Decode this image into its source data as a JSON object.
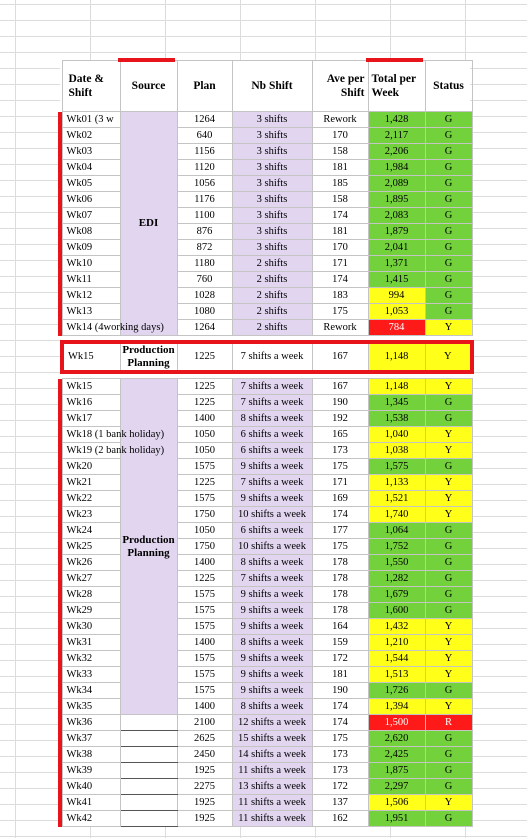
{
  "table": {
    "headers": {
      "date_shift": "Date & Shift",
      "source": "Source",
      "plan": "Plan",
      "nb_shift": "Nb Shift",
      "ave_per_shift": "Ave per Shift",
      "total_per_week": "Total per Week",
      "status": "Status"
    },
    "colors": {
      "G": "#73d13c",
      "Y": "#ffff1a",
      "R": "#ff1a1a"
    },
    "group_edi": {
      "source": "EDI",
      "rows": [
        {
          "date": "Wk01 (3 w",
          "plan": "1264",
          "nb": "3 shifts",
          "ave": "Rework",
          "total": "1,428",
          "tc": "g",
          "status": "G",
          "sc": "g"
        },
        {
          "date": "Wk02",
          "plan": "640",
          "nb": "3 shifts",
          "ave": "170",
          "total": "2,117",
          "tc": "g",
          "status": "G",
          "sc": "g"
        },
        {
          "date": "Wk03",
          "plan": "1156",
          "nb": "3 shifts",
          "ave": "158",
          "total": "2,206",
          "tc": "g",
          "status": "G",
          "sc": "g"
        },
        {
          "date": "Wk04",
          "plan": "1120",
          "nb": "3 shifts",
          "ave": "181",
          "total": "1,984",
          "tc": "g",
          "status": "G",
          "sc": "g"
        },
        {
          "date": "Wk05",
          "plan": "1056",
          "nb": "3 shifts",
          "ave": "185",
          "total": "2,089",
          "tc": "g",
          "status": "G",
          "sc": "g"
        },
        {
          "date": "Wk06",
          "plan": "1176",
          "nb": "3 shifts",
          "ave": "158",
          "total": "1,895",
          "tc": "g",
          "status": "G",
          "sc": "g"
        },
        {
          "date": "Wk07",
          "plan": "1100",
          "nb": "3 shifts",
          "ave": "174",
          "total": "2,083",
          "tc": "g",
          "status": "G",
          "sc": "g"
        },
        {
          "date": "Wk08",
          "plan": "876",
          "nb": "3 shifts",
          "ave": "181",
          "total": "1,879",
          "tc": "g",
          "status": "G",
          "sc": "g"
        },
        {
          "date": "Wk09",
          "plan": "872",
          "nb": "3 shifts",
          "ave": "170",
          "total": "2,041",
          "tc": "g",
          "status": "G",
          "sc": "g"
        },
        {
          "date": "Wk10",
          "plan": "1180",
          "nb": "2 shifts",
          "ave": "171",
          "total": "1,371",
          "tc": "g",
          "status": "G",
          "sc": "g"
        },
        {
          "date": "Wk11",
          "plan": "760",
          "nb": "2 shifts",
          "ave": "174",
          "total": "1,415",
          "tc": "g",
          "status": "G",
          "sc": "g"
        },
        {
          "date": "Wk12",
          "plan": "1028",
          "nb": "2 shifts",
          "ave": "183",
          "total": "994",
          "tc": "y",
          "status": "G",
          "sc": "g"
        },
        {
          "date": "Wk13",
          "plan": "1080",
          "nb": "2 shifts",
          "ave": "175",
          "total": "1,053",
          "tc": "y",
          "status": "G",
          "sc": "g"
        },
        {
          "date": "Wk14 (4working days)",
          "plan": "1264",
          "nb": "2 shifts",
          "ave": "Rework",
          "total": "784",
          "tc": "r",
          "status": "Y",
          "sc": "y"
        }
      ]
    },
    "highlight_row": {
      "date": "Wk15",
      "source": "Production Planning",
      "plan": "1225",
      "nb": "7 shifts a week",
      "ave": "167",
      "total": "1,148",
      "tc": "y",
      "status": "Y",
      "sc": "y"
    },
    "group_pp": {
      "source": "Production Planning",
      "rows": [
        {
          "date": "Wk15",
          "plan": "1225",
          "nb": "7 shifts a week",
          "ave": "167",
          "total": "1,148",
          "tc": "y",
          "status": "Y",
          "sc": "y"
        },
        {
          "date": "Wk16",
          "plan": "1225",
          "nb": "7 shifts a week",
          "ave": "190",
          "total": "1,345",
          "tc": "g",
          "status": "G",
          "sc": "g"
        },
        {
          "date": "Wk17",
          "plan": "1400",
          "nb": "8 shifts a week",
          "ave": "192",
          "total": "1,538",
          "tc": "g",
          "status": "G",
          "sc": "g"
        },
        {
          "date": "Wk18 (1 bank holiday)",
          "plan": "1050",
          "nb": "6 shifts a week",
          "ave": "165",
          "total": "1,040",
          "tc": "y",
          "status": "Y",
          "sc": "y"
        },
        {
          "date": "Wk19 (2 bank holiday)",
          "plan": "1050",
          "nb": "6 shifts a week",
          "ave": "173",
          "total": "1,038",
          "tc": "y",
          "status": "Y",
          "sc": "y"
        },
        {
          "date": "Wk20",
          "plan": "1575",
          "nb": "9 shifts a week",
          "ave": "175",
          "total": "1,575",
          "tc": "g",
          "status": "G",
          "sc": "g"
        },
        {
          "date": "Wk21",
          "plan": "1225",
          "nb": "7 shifts a week",
          "ave": "171",
          "total": "1,133",
          "tc": "y",
          "status": "Y",
          "sc": "y"
        },
        {
          "date": "Wk22",
          "plan": "1575",
          "nb": "9 shifts a week",
          "ave": "169",
          "total": "1,521",
          "tc": "y",
          "status": "Y",
          "sc": "y"
        },
        {
          "date": "Wk23",
          "plan": "1750",
          "nb": "10 shifts a week",
          "ave": "174",
          "total": "1,740",
          "tc": "y",
          "status": "Y",
          "sc": "y"
        },
        {
          "date": "Wk24",
          "plan": "1050",
          "nb": "6 shifts a week",
          "ave": "177",
          "total": "1,064",
          "tc": "g",
          "status": "G",
          "sc": "g"
        },
        {
          "date": "Wk25",
          "plan": "1750",
          "nb": "10 shifts a week",
          "ave": "175",
          "total": "1,752",
          "tc": "g",
          "status": "G",
          "sc": "g"
        },
        {
          "date": "Wk26",
          "plan": "1400",
          "nb": "8 shifts a week",
          "ave": "178",
          "total": "1,550",
          "tc": "g",
          "status": "G",
          "sc": "g"
        },
        {
          "date": "Wk27",
          "plan": "1225",
          "nb": "7 shifts a week",
          "ave": "178",
          "total": "1,282",
          "tc": "g",
          "status": "G",
          "sc": "g"
        },
        {
          "date": "Wk28",
          "plan": "1575",
          "nb": "9 shifts a week",
          "ave": "178",
          "total": "1,679",
          "tc": "g",
          "status": "G",
          "sc": "g"
        },
        {
          "date": "Wk29",
          "plan": "1575",
          "nb": "9 shifts a week",
          "ave": "178",
          "total": "1,600",
          "tc": "g",
          "status": "G",
          "sc": "g"
        },
        {
          "date": "Wk30",
          "plan": "1575",
          "nb": "9 shifts a week",
          "ave": "164",
          "total": "1,432",
          "tc": "y",
          "status": "Y",
          "sc": "y"
        },
        {
          "date": "Wk31",
          "plan": "1400",
          "nb": "8 shifts a week",
          "ave": "159",
          "total": "1,210",
          "tc": "y",
          "status": "Y",
          "sc": "y"
        },
        {
          "date": "Wk32",
          "plan": "1575",
          "nb": "9 shifts a week",
          "ave": "172",
          "total": "1,544",
          "tc": "y",
          "status": "Y",
          "sc": "y"
        },
        {
          "date": "Wk33",
          "plan": "1575",
          "nb": "9 shifts a week",
          "ave": "181",
          "total": "1,513",
          "tc": "y",
          "status": "Y",
          "sc": "y"
        },
        {
          "date": "Wk34",
          "plan": "1575",
          "nb": "9 shifts a week",
          "ave": "190",
          "total": "1,726",
          "tc": "g",
          "status": "G",
          "sc": "g"
        },
        {
          "date": "Wk35",
          "plan": "1400",
          "nb": "8 shifts a week",
          "ave": "174",
          "total": "1,394",
          "tc": "y",
          "status": "Y",
          "sc": "y"
        }
      ]
    },
    "group_tail": {
      "rows": [
        {
          "date": "Wk36",
          "plan": "2100",
          "nb": "12 shifts a week",
          "ave": "174",
          "total": "1,500",
          "tc": "r",
          "status": "R",
          "sc": "r"
        },
        {
          "date": "Wk37",
          "plan": "2625",
          "nb": "15 shifts a week",
          "ave": "175",
          "total": "2,620",
          "tc": "g",
          "status": "G",
          "sc": "g"
        },
        {
          "date": "Wk38",
          "plan": "2450",
          "nb": "14 shifts a week",
          "ave": "173",
          "total": "2,425",
          "tc": "g",
          "status": "G",
          "sc": "g"
        },
        {
          "date": "Wk39",
          "plan": "1925",
          "nb": "11 shifts a week",
          "ave": "173",
          "total": "1,875",
          "tc": "g",
          "status": "G",
          "sc": "g"
        },
        {
          "date": "Wk40",
          "plan": "2275",
          "nb": "13 shifts a week",
          "ave": "172",
          "total": "2,297",
          "tc": "g",
          "status": "G",
          "sc": "g"
        },
        {
          "date": "Wk41",
          "plan": "1925",
          "nb": "11 shifts a week",
          "ave": "137",
          "total": "1,506",
          "tc": "y",
          "status": "Y",
          "sc": "y"
        },
        {
          "date": "Wk42",
          "plan": "1925",
          "nb": "11 shifts a week",
          "ave": "162",
          "total": "1,951",
          "tc": "g",
          "status": "G",
          "sc": "g"
        }
      ]
    }
  }
}
